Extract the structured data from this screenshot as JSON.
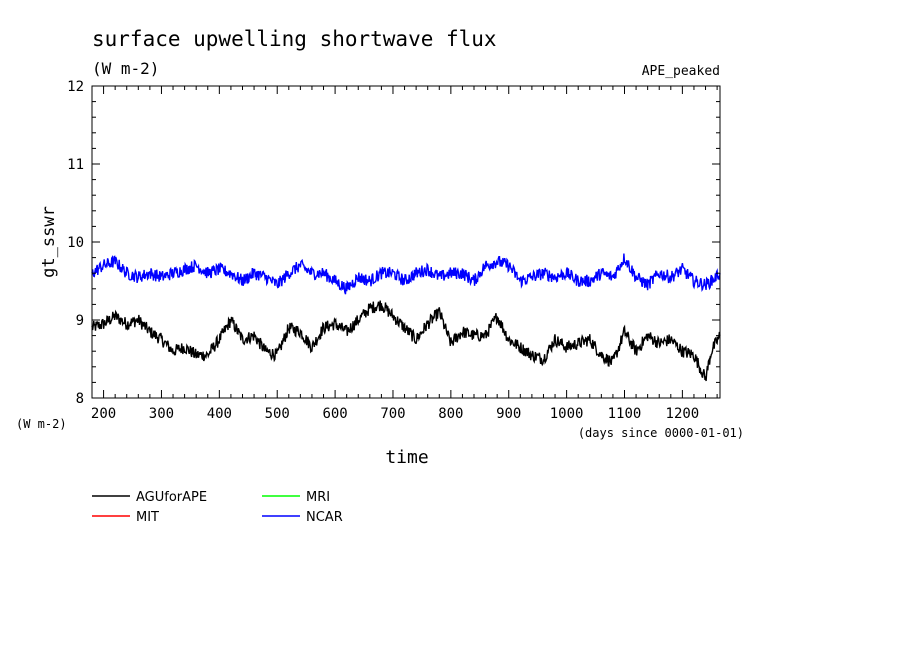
{
  "chart_data": {
    "type": "line",
    "title": "surface upwelling shortwave flux",
    "subtitle": "(W m-2)",
    "experiment": "APE_peaked",
    "ylabel": "gt_sswr",
    "yunit": "(W m-2)",
    "xlabel": "time",
    "xunit": "(days since 0000-01-01)",
    "xlim": [
      180,
      1265
    ],
    "ylim": [
      8,
      12
    ],
    "x_ticks": [
      "200",
      "300",
      "400",
      "500",
      "600",
      "700",
      "800",
      "900",
      "1000",
      "1100",
      "1200"
    ],
    "y_ticks": [
      "8",
      "9",
      "10",
      "11",
      "12"
    ],
    "grid": false,
    "legend_position": "bottom-left",
    "series": [
      {
        "name": "AGUforAPE",
        "color": "#000000",
        "x": [
          180,
          200,
          220,
          240,
          260,
          280,
          300,
          320,
          340,
          360,
          380,
          400,
          420,
          440,
          460,
          480,
          500,
          520,
          540,
          560,
          580,
          600,
          620,
          640,
          660,
          680,
          700,
          720,
          740,
          760,
          780,
          800,
          820,
          840,
          860,
          880,
          900,
          920,
          940,
          960,
          980,
          1000,
          1020,
          1040,
          1060,
          1080,
          1100,
          1120,
          1140,
          1160,
          1180,
          1200,
          1220,
          1240,
          1250,
          1265
        ],
        "y": [
          8.9,
          8.95,
          9.05,
          8.95,
          9.0,
          8.85,
          8.75,
          8.6,
          8.65,
          8.55,
          8.55,
          8.75,
          9.0,
          8.75,
          8.8,
          8.6,
          8.55,
          8.9,
          8.85,
          8.65,
          8.9,
          8.95,
          8.85,
          9.0,
          9.15,
          9.2,
          9.05,
          8.9,
          8.75,
          8.95,
          9.1,
          8.7,
          8.85,
          8.8,
          8.8,
          9.05,
          8.75,
          8.65,
          8.55,
          8.5,
          8.75,
          8.65,
          8.7,
          8.75,
          8.55,
          8.45,
          8.85,
          8.6,
          8.8,
          8.7,
          8.75,
          8.6,
          8.55,
          8.25,
          8.6,
          8.8
        ]
      },
      {
        "name": "MIT",
        "color": "#ff0000",
        "x": [],
        "y": []
      },
      {
        "name": "MRI",
        "color": "#00ff00",
        "x": [],
        "y": []
      },
      {
        "name": "NCAR",
        "color": "#0000ff",
        "x": [
          180,
          200,
          220,
          240,
          260,
          280,
          300,
          320,
          340,
          360,
          380,
          400,
          420,
          440,
          460,
          480,
          500,
          520,
          540,
          560,
          580,
          600,
          620,
          640,
          660,
          680,
          700,
          720,
          740,
          760,
          780,
          800,
          820,
          840,
          860,
          880,
          900,
          920,
          940,
          960,
          980,
          1000,
          1020,
          1040,
          1060,
          1080,
          1100,
          1120,
          1140,
          1160,
          1180,
          1200,
          1220,
          1240,
          1250,
          1265
        ],
        "y": [
          9.6,
          9.7,
          9.75,
          9.6,
          9.55,
          9.6,
          9.55,
          9.6,
          9.65,
          9.7,
          9.6,
          9.65,
          9.6,
          9.5,
          9.6,
          9.55,
          9.45,
          9.6,
          9.7,
          9.6,
          9.6,
          9.5,
          9.4,
          9.55,
          9.5,
          9.6,
          9.6,
          9.5,
          9.6,
          9.65,
          9.55,
          9.6,
          9.6,
          9.5,
          9.7,
          9.75,
          9.7,
          9.5,
          9.55,
          9.6,
          9.55,
          9.6,
          9.5,
          9.5,
          9.6,
          9.55,
          9.8,
          9.55,
          9.45,
          9.6,
          9.55,
          9.65,
          9.5,
          9.45,
          9.5,
          9.6
        ]
      }
    ]
  }
}
